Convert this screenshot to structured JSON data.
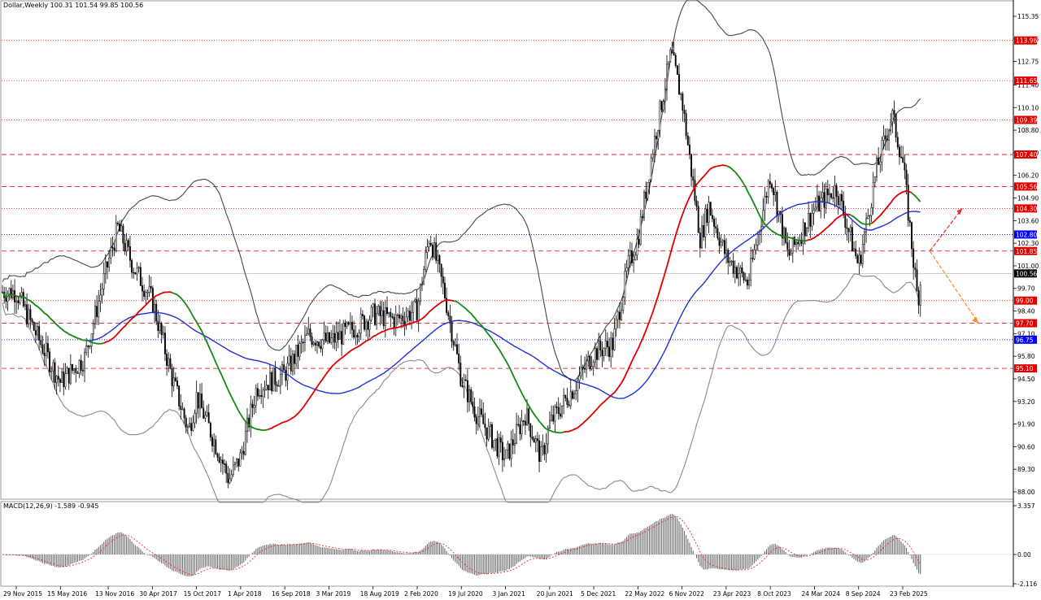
{
  "header": {
    "main_title": "Dollar,Weekly  100.31 101.54 99.85 100.56",
    "macd_title": "MACD(12,26,9) -1.589 -0.945"
  },
  "colors": {
    "level_red": "#e00000",
    "level_blue": "#0000ff",
    "current_price": "#000000",
    "ma_red": "#e00000",
    "ma_blue": "#1f2fd6",
    "ma_green": "#138a13",
    "bollinger": "#3c4b4b",
    "candle": "#000000",
    "arrow_up": "#e03030",
    "arrow_down": "#ff8c1a"
  },
  "chart_data": [
    {
      "type": "line",
      "title": "Dollar,Weekly",
      "ohlc_last": {
        "open": 100.31,
        "high": 101.54,
        "low": 99.85,
        "close": 100.56
      },
      "y_axis": {
        "ticks": [
          "115.35",
          "114.05",
          "112.75",
          "111.40",
          "110.10",
          "108.80",
          "107.50",
          "106.20",
          "104.90",
          "103.60",
          "102.30",
          "101.00",
          "99.70",
          "98.40",
          "97.10",
          "95.80",
          "94.50",
          "93.20",
          "91.90",
          "90.60",
          "89.30",
          "88.00"
        ],
        "range": [
          87.4,
          116.2
        ]
      },
      "x_axis": {
        "labels": [
          "29 Nov 2015",
          "15 May 2016",
          "13 Nov 2016",
          "30 Apr 2017",
          "15 Oct 2017",
          "1 Apr 2018",
          "16 Sep 2018",
          "3 Mar 2019",
          "18 Aug 2019",
          "2 Feb 2020",
          "19 Jul 2020",
          "3 Jan 2021",
          "20 Jun 2021",
          "5 Dec 2021",
          "22 May 2022",
          "6 Nov 2022",
          "23 Apr 2023",
          "8 Oct 2023",
          "24 Mar 2024",
          "8 Sep 2024",
          "23 Feb 2025"
        ]
      },
      "levels": [
        {
          "value": 113.96,
          "label": "113.96",
          "color": "red",
          "style": "dotted"
        },
        {
          "value": 111.65,
          "label": "111.65",
          "color": "red",
          "style": "dotted"
        },
        {
          "value": 109.39,
          "label": "109.39",
          "color": "red",
          "style": "dotted"
        },
        {
          "value": 107.4,
          "label": "107.40",
          "color": "red",
          "style": "dashed"
        },
        {
          "value": 105.56,
          "label": "105.56",
          "color": "red",
          "style": "dashed"
        },
        {
          "value": 104.3,
          "label": "104.30",
          "color": "red",
          "style": "dotted"
        },
        {
          "value": 102.8,
          "label": "102.80",
          "color": "blue",
          "style": "dotted"
        },
        {
          "value": 101.85,
          "label": "101.85",
          "color": "red",
          "style": "dashed"
        },
        {
          "value": 100.56,
          "label": "100.56",
          "color": "black",
          "style": "solid"
        },
        {
          "value": 99.0,
          "label": "99.00",
          "color": "red",
          "style": "dotted"
        },
        {
          "value": 97.7,
          "label": "97.70",
          "color": "red",
          "style": "dashed"
        },
        {
          "value": 96.75,
          "label": "96.75",
          "color": "blue",
          "style": "dotted"
        },
        {
          "value": 95.1,
          "label": "95.10",
          "color": "red",
          "style": "dashed"
        }
      ],
      "close_series": [
        {
          "date": "29 Nov 2015",
          "close": 99.5
        },
        {
          "date": "15 Feb 2016",
          "close": 97.0
        },
        {
          "date": "15 May 2016",
          "close": 94.3
        },
        {
          "date": "15 Aug 2016",
          "close": 95.7
        },
        {
          "date": "13 Nov 2016",
          "close": 101.2
        },
        {
          "date": "20 Dec 2016",
          "close": 103.2
        },
        {
          "date": "15 Feb 2017",
          "close": 101.0
        },
        {
          "date": "30 Apr 2017",
          "close": 99.0
        },
        {
          "date": "15 Jul 2017",
          "close": 94.5
        },
        {
          "date": "15 Sep 2017",
          "close": 91.5
        },
        {
          "date": "15 Oct 2017",
          "close": 93.5
        },
        {
          "date": "15 Jan 2018",
          "close": 90.0
        },
        {
          "date": "15 Feb 2018",
          "close": 88.7
        },
        {
          "date": "1 Apr 2018",
          "close": 90.0
        },
        {
          "date": "1 Jun 2018",
          "close": 94.0
        },
        {
          "date": "16 Sep 2018",
          "close": 94.8
        },
        {
          "date": "15 Dec 2018",
          "close": 97.0
        },
        {
          "date": "3 Mar 2019",
          "close": 96.6
        },
        {
          "date": "15 Jun 2019",
          "close": 97.5
        },
        {
          "date": "18 Aug 2019",
          "close": 98.2
        },
        {
          "date": "15 Nov 2019",
          "close": 97.9
        },
        {
          "date": "2 Feb 2020",
          "close": 98.5
        },
        {
          "date": "20 Mar 2020",
          "close": 102.8
        },
        {
          "date": "15 May 2020",
          "close": 99.5
        },
        {
          "date": "19 Jul 2020",
          "close": 94.5
        },
        {
          "date": "15 Sep 2020",
          "close": 92.5
        },
        {
          "date": "3 Jan 2021",
          "close": 89.9
        },
        {
          "date": "20 Mar 2021",
          "close": 92.5
        },
        {
          "date": "20 May 2021",
          "close": 89.9
        },
        {
          "date": "20 Jun 2021",
          "close": 91.9
        },
        {
          "date": "20 Sep 2021",
          "close": 94.0
        },
        {
          "date": "5 Dec 2021",
          "close": 96.0
        },
        {
          "date": "15 Feb 2022",
          "close": 96.5
        },
        {
          "date": "15 Apr 2022",
          "close": 101.0
        },
        {
          "date": "22 May 2022",
          "close": 102.5
        },
        {
          "date": "15 Jul 2022",
          "close": 107.5
        },
        {
          "date": "25 Sep 2022",
          "close": 113.2
        },
        {
          "date": "6 Nov 2022",
          "close": 110.5
        },
        {
          "date": "15 Jan 2023",
          "close": 102.5
        },
        {
          "date": "15 Feb 2023",
          "close": 104.5
        },
        {
          "date": "23 Apr 2023",
          "close": 101.5
        },
        {
          "date": "15 Jul 2023",
          "close": 100.0
        },
        {
          "date": "8 Oct 2023",
          "close": 106.3
        },
        {
          "date": "15 Dec 2023",
          "close": 101.5
        },
        {
          "date": "24 Mar 2024",
          "close": 104.3
        },
        {
          "date": "15 Jun 2024",
          "close": 105.5
        },
        {
          "date": "8 Sep 2024",
          "close": 101.0
        },
        {
          "date": "15 Nov 2024",
          "close": 106.5
        },
        {
          "date": "13 Jan 2025",
          "close": 109.7
        },
        {
          "date": "23 Feb 2025",
          "close": 107.0
        },
        {
          "date": "21 Apr 2025",
          "close": 99.0
        },
        {
          "date": "6 May 2025",
          "close": 100.56
        }
      ],
      "projection": {
        "up_target": 104.3,
        "down_target": 97.7
      }
    },
    {
      "type": "bar",
      "title": "MACD(12,26,9)",
      "values": {
        "macd": -1.589,
        "signal": -0.945
      },
      "y_axis": {
        "ticks": [
          "3.357",
          "0.00",
          "-2.116"
        ],
        "range": [
          -2.3,
          3.5
        ]
      }
    }
  ]
}
